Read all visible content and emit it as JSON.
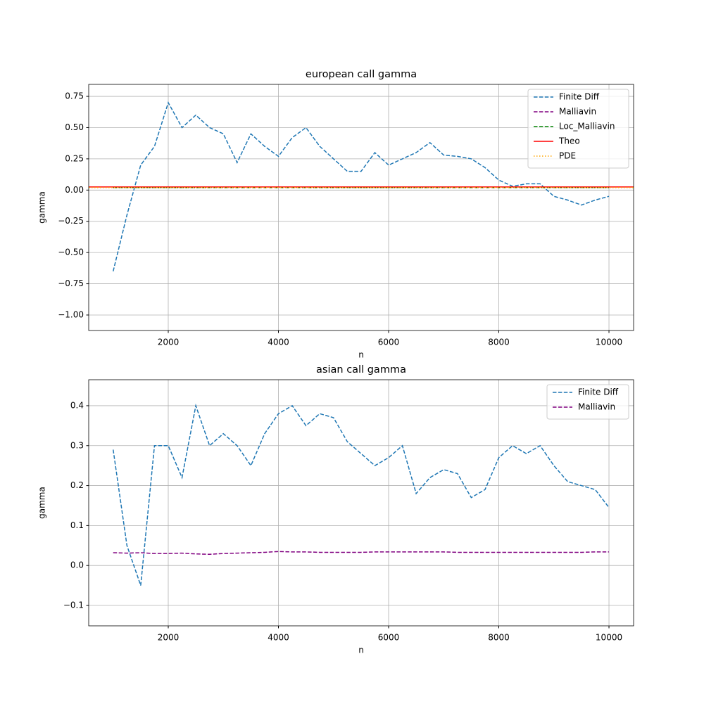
{
  "chart_data": [
    {
      "type": "line",
      "title": "european call gamma",
      "xlabel": "n",
      "ylabel": "gamma",
      "x": [
        1000,
        1250,
        1500,
        1750,
        2000,
        2250,
        2500,
        2750,
        3000,
        3250,
        3500,
        3750,
        4000,
        4250,
        4500,
        4750,
        5000,
        5250,
        5500,
        5750,
        6000,
        6250,
        6500,
        6750,
        7000,
        7250,
        7500,
        7750,
        8000,
        8250,
        8500,
        8750,
        9000,
        9250,
        9500,
        9750,
        10000
      ],
      "series": [
        {
          "name": "Finite Diff",
          "color": "#1f77b4",
          "style": "dashed",
          "values": [
            -0.65,
            -0.2,
            0.2,
            0.35,
            0.7,
            0.5,
            0.6,
            0.5,
            0.45,
            0.22,
            0.45,
            0.35,
            0.27,
            0.42,
            0.5,
            0.35,
            0.25,
            0.15,
            0.15,
            0.3,
            0.2,
            0.25,
            0.3,
            0.38,
            0.28,
            0.27,
            0.25,
            0.18,
            0.08,
            0.03,
            0.05,
            0.05,
            -0.05,
            -0.08,
            -0.12,
            -0.08,
            -0.05
          ]
        },
        {
          "name": "Malliavin",
          "color": "#800080",
          "style": "dashed",
          "values": [
            0.02,
            0.02,
            0.02,
            0.02,
            0.02,
            0.02,
            0.02,
            0.02,
            0.02,
            0.02,
            0.02,
            0.02,
            0.02,
            0.02,
            0.02,
            0.02,
            0.02,
            0.02,
            0.02,
            0.02,
            0.02,
            0.02,
            0.02,
            0.02,
            0.02,
            0.02,
            0.02,
            0.02,
            0.02,
            0.02,
            0.02,
            0.02,
            0.02,
            0.02,
            0.02,
            0.02,
            0.02
          ]
        },
        {
          "name": "Loc_Malliavin",
          "color": "#008000",
          "style": "dashed",
          "values": [
            0.02,
            0.02,
            0.02,
            0.02,
            0.02,
            0.02,
            0.02,
            0.02,
            0.02,
            0.02,
            0.02,
            0.02,
            0.02,
            0.02,
            0.02,
            0.02,
            0.02,
            0.02,
            0.02,
            0.02,
            0.02,
            0.02,
            0.02,
            0.02,
            0.02,
            0.02,
            0.02,
            0.02,
            0.02,
            0.02,
            0.02,
            0.02,
            0.02,
            0.02,
            0.02,
            0.02,
            0.02
          ]
        },
        {
          "name": "Theo",
          "color": "#ff0000",
          "style": "solid",
          "hline": 0.025
        },
        {
          "name": "PDE",
          "color": "#ffa500",
          "style": "dotted",
          "hline": 0.02
        }
      ],
      "xlim": [
        556,
        10447
      ],
      "ylim": [
        -1.124,
        0.846
      ],
      "xticks": [
        2000,
        4000,
        6000,
        8000,
        10000
      ],
      "yticks": [
        {
          "value": -1.0,
          "label": "−1.00"
        },
        {
          "value": -0.75,
          "label": "−0.75"
        },
        {
          "value": -0.5,
          "label": "−0.50"
        },
        {
          "value": -0.25,
          "label": "−0.25"
        },
        {
          "value": 0,
          "label": "0.00"
        },
        {
          "value": 0.25,
          "label": "0.25"
        },
        {
          "value": 0.5,
          "label": "0.50"
        },
        {
          "value": 0.75,
          "label": "0.75"
        }
      ],
      "grid": true,
      "legend": "upper right"
    },
    {
      "type": "line",
      "title": "asian call gamma",
      "xlabel": "n",
      "ylabel": "gamma",
      "x": [
        1000,
        1250,
        1500,
        1750,
        2000,
        2250,
        2500,
        2750,
        3000,
        3250,
        3500,
        3750,
        4000,
        4250,
        4500,
        4750,
        5000,
        5250,
        5500,
        5750,
        6000,
        6250,
        6500,
        6750,
        7000,
        7250,
        7500,
        7750,
        8000,
        8250,
        8500,
        8750,
        9000,
        9250,
        9500,
        9750,
        10000
      ],
      "series": [
        {
          "name": "Finite Diff",
          "color": "#1f77b4",
          "style": "dashed",
          "values": [
            0.29,
            0.05,
            -0.05,
            0.3,
            0.3,
            0.22,
            0.4,
            0.3,
            0.33,
            0.3,
            0.25,
            0.33,
            0.38,
            0.4,
            0.35,
            0.38,
            0.37,
            0.31,
            0.28,
            0.25,
            0.27,
            0.3,
            0.18,
            0.22,
            0.24,
            0.23,
            0.17,
            0.19,
            0.27,
            0.3,
            0.28,
            0.3,
            0.25,
            0.21,
            0.2,
            0.19,
            0.145
          ]
        },
        {
          "name": "Malliavin",
          "color": "#800080",
          "style": "dashed",
          "values": [
            0.032,
            0.031,
            0.032,
            0.03,
            0.03,
            0.031,
            0.029,
            0.028,
            0.03,
            0.031,
            0.032,
            0.033,
            0.035,
            0.034,
            0.034,
            0.033,
            0.033,
            0.033,
            0.033,
            0.034,
            0.034,
            0.034,
            0.034,
            0.034,
            0.034,
            0.033,
            0.033,
            0.033,
            0.033,
            0.033,
            0.033,
            0.033,
            0.033,
            0.033,
            0.033,
            0.034,
            0.034
          ]
        }
      ],
      "xlim": [
        556,
        10447
      ],
      "ylim": [
        -0.151,
        0.465
      ],
      "xticks": [
        2000,
        4000,
        6000,
        8000,
        10000
      ],
      "yticks": [
        {
          "value": -0.1,
          "label": "−0.1"
        },
        {
          "value": 0,
          "label": "0.0"
        },
        {
          "value": 0.1,
          "label": "0.1"
        },
        {
          "value": 0.2,
          "label": "0.2"
        },
        {
          "value": 0.3,
          "label": "0.3"
        },
        {
          "value": 0.4,
          "label": "0.4"
        }
      ],
      "grid": true,
      "legend": "upper right"
    }
  ]
}
